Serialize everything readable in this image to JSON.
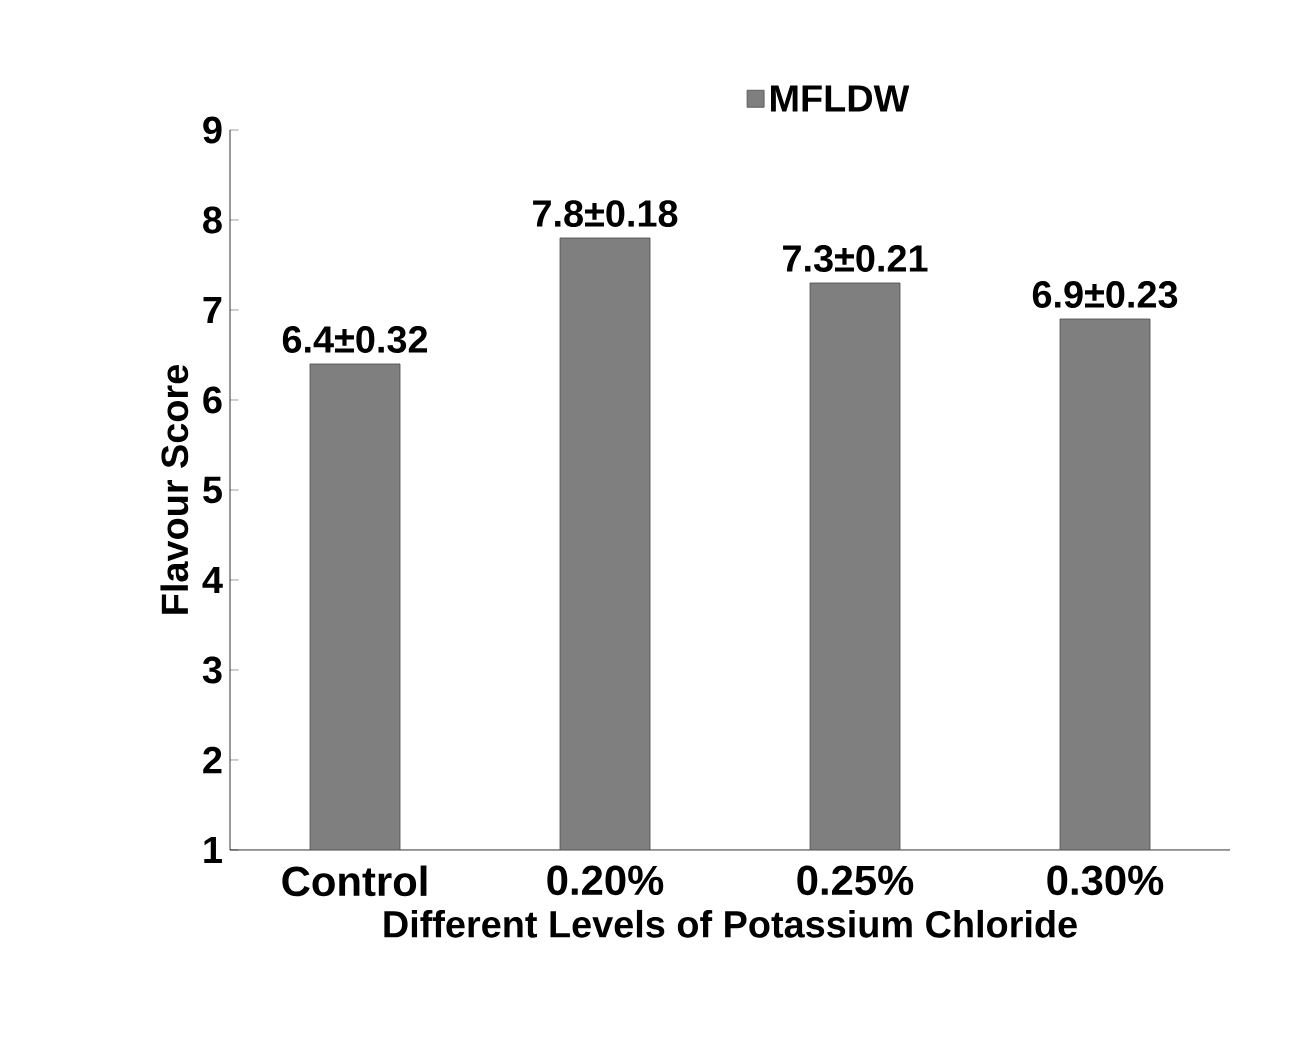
{
  "chart_data": {
    "type": "bar",
    "xlabel": "Different Levels of Potassium Chloride",
    "ylabel": "Flavour Score",
    "categories": [
      "Control",
      "0.20%",
      "0.25%",
      "0.30%"
    ],
    "series": [
      {
        "name": "MFLDW",
        "color": "#7f7f7f",
        "values": [
          6.4,
          7.8,
          7.3,
          6.9
        ],
        "value_labels": [
          "6.4±0.32",
          "7.8±0.18",
          "7.3±0.21",
          "6.9±0.23"
        ]
      }
    ],
    "ylim": [
      1,
      9
    ],
    "yticks": [
      1,
      2,
      3,
      4,
      5,
      6,
      7,
      8,
      9
    ],
    "legend": "top",
    "grid": false
  }
}
